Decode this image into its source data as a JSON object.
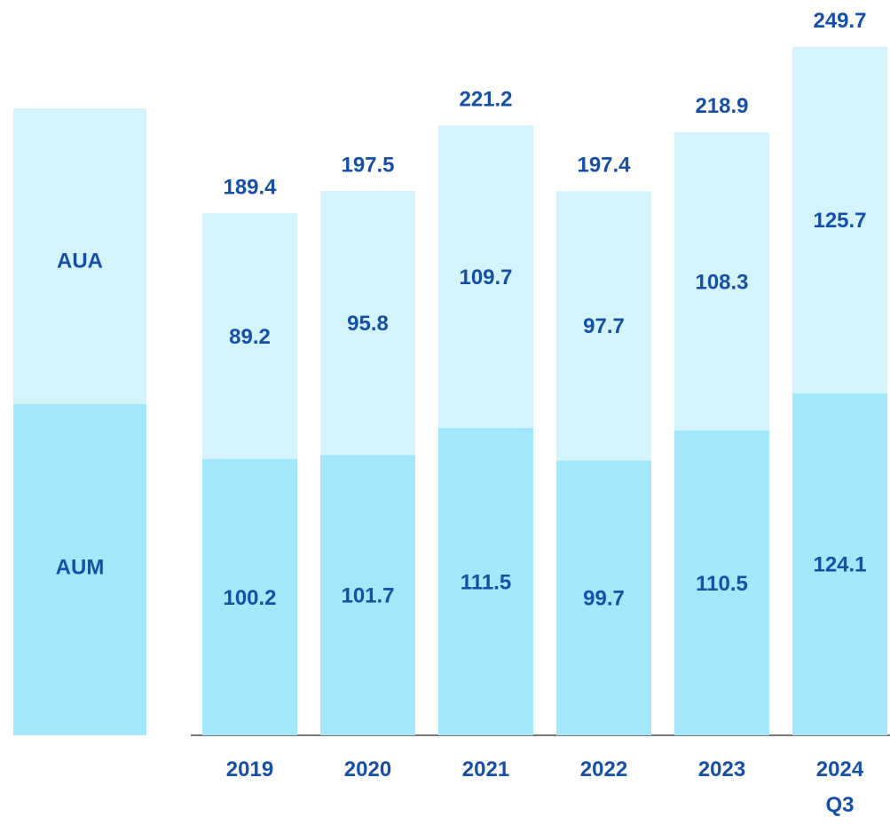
{
  "chart_data": {
    "type": "stacked-bar",
    "categories": [
      "2019",
      "2020",
      "2021",
      "2022",
      "2023",
      "2024 Q3"
    ],
    "series": [
      {
        "name": "AUM",
        "color": "#a2e7fc",
        "values": [
          100.2,
          101.7,
          111.5,
          99.7,
          110.5,
          124.1
        ]
      },
      {
        "name": "AUA",
        "color": "#d3f3fd",
        "values": [
          89.2,
          95.8,
          109.7,
          97.7,
          108.3,
          125.7
        ]
      }
    ],
    "totals": [
      189.4,
      197.5,
      221.2,
      197.4,
      218.9,
      249.7
    ],
    "ylim": [
      0,
      250
    ]
  }
}
